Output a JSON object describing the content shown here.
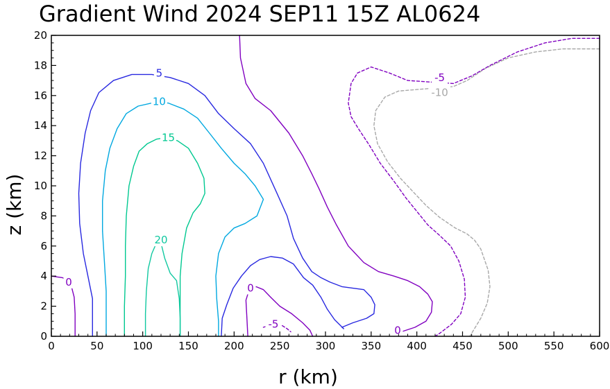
{
  "chart_data": {
    "type": "contour",
    "title": "Gradient Wind 2024 SEP11 15Z  AL0624",
    "xlabel": "r (km)",
    "ylabel": "z (km)",
    "xlim": [
      0,
      600
    ],
    "ylim": [
      0,
      20
    ],
    "xticks": [
      "0",
      "50",
      "100",
      "150",
      "200",
      "250",
      "300",
      "350",
      "400",
      "450",
      "500",
      "550",
      "600"
    ],
    "yticks": [
      "0",
      "2",
      "4",
      "6",
      "8",
      "10",
      "12",
      "14",
      "16",
      "18",
      "20"
    ],
    "grid": false,
    "contours": [
      {
        "level": -10,
        "label": "-10",
        "color": "#a8a8a8",
        "dashed": true,
        "points": [
          [
            600,
            19.1
          ],
          [
            560,
            19.1
          ],
          [
            530,
            18.9
          ],
          [
            500,
            18.5
          ],
          [
            475,
            17.8
          ],
          [
            455,
            17.0
          ],
          [
            440,
            16.6
          ],
          [
            420,
            16.5
          ],
          [
            400,
            16.4
          ],
          [
            380,
            16.3
          ],
          [
            365,
            15.9
          ],
          [
            355,
            15.0
          ],
          [
            353,
            14.0
          ],
          [
            357,
            12.8
          ],
          [
            368,
            11.6
          ],
          [
            382,
            10.5
          ],
          [
            396,
            9.6
          ],
          [
            410,
            8.7
          ],
          [
            425,
            7.9
          ],
          [
            442,
            7.2
          ],
          [
            455,
            6.8
          ],
          [
            463,
            6.4
          ],
          [
            470,
            5.8
          ],
          [
            478,
            4.4
          ],
          [
            480,
            3.3
          ],
          [
            477,
            2.2
          ],
          [
            470,
            1.2
          ],
          [
            462,
            0.4
          ],
          [
            458,
            0
          ]
        ],
        "label_at": [
          425,
          16.2
        ]
      },
      {
        "level": -5,
        "label": "-5",
        "color": "#8000c0",
        "dashed": true,
        "points": [
          [
            600,
            19.8
          ],
          [
            570,
            19.8
          ],
          [
            540,
            19.5
          ],
          [
            510,
            18.9
          ],
          [
            480,
            18.0
          ],
          [
            460,
            17.3
          ],
          [
            440,
            16.8
          ],
          [
            415,
            16.9
          ],
          [
            390,
            17.0
          ],
          [
            370,
            17.5
          ],
          [
            350,
            17.9
          ],
          [
            335,
            17.5
          ],
          [
            328,
            16.8
          ],
          [
            325,
            15.5
          ],
          [
            328,
            14.6
          ],
          [
            336,
            13.8
          ],
          [
            348,
            12.7
          ],
          [
            360,
            11.5
          ],
          [
            375,
            10.3
          ],
          [
            388,
            9.2
          ],
          [
            400,
            8.3
          ],
          [
            412,
            7.4
          ],
          [
            425,
            6.7
          ],
          [
            437,
            6.0
          ],
          [
            446,
            5.0
          ],
          [
            452,
            3.8
          ],
          [
            453,
            2.6
          ],
          [
            448,
            1.5
          ],
          [
            438,
            0.8
          ],
          [
            425,
            0.2
          ],
          [
            420,
            0
          ]
        ],
        "label_at": [
          425,
          17.2
        ]
      },
      {
        "level": -5,
        "label": "-5",
        "color": "#8000c0",
        "dashed": true,
        "points": [
          [
            232,
            0.6
          ],
          [
            243,
            0.8
          ],
          [
            253,
            0.7
          ],
          [
            258,
            0.5
          ],
          [
            262,
            0.3
          ]
        ],
        "label_at": [
          243,
          0.8
        ]
      },
      {
        "level": 0,
        "label": "0",
        "color": "#8000c0",
        "dashed": false,
        "points": [
          [
            0,
            4.0
          ],
          [
            12,
            3.9
          ],
          [
            19,
            3.7
          ],
          [
            22,
            3.3
          ],
          [
            25,
            2.6
          ],
          [
            26,
            1.5
          ],
          [
            26,
            0
          ]
        ],
        "label_at": [
          19,
          3.6
        ]
      },
      {
        "level": 0,
        "label": "0",
        "color": "#8000c0",
        "dashed": false,
        "points": [
          [
            206,
            20
          ],
          [
            207,
            18.5
          ],
          [
            213,
            16.8
          ],
          [
            223,
            15.8
          ],
          [
            240,
            15.0
          ],
          [
            260,
            13.5
          ],
          [
            275,
            12.0
          ],
          [
            285,
            10.8
          ],
          [
            293,
            9.8
          ],
          [
            302,
            8.6
          ],
          [
            312,
            7.4
          ],
          [
            325,
            6.0
          ],
          [
            342,
            4.9
          ],
          [
            358,
            4.3
          ],
          [
            375,
            4.0
          ],
          [
            390,
            3.7
          ],
          [
            403,
            3.3
          ],
          [
            412,
            2.8
          ],
          [
            417,
            2.3
          ],
          [
            416,
            1.6
          ],
          [
            410,
            1.0
          ],
          [
            398,
            0.6
          ],
          [
            383,
            0.3
          ],
          [
            375,
            0
          ]
        ],
        "label_at": [
          379,
          0.4
        ]
      },
      {
        "level": 0,
        "label": "0",
        "color": "#8000c0",
        "dashed": false,
        "points": [
          [
            215,
            0
          ],
          [
            214,
            1.2
          ],
          [
            213,
            2.4
          ],
          [
            216,
            3.0
          ],
          [
            224,
            3.3
          ],
          [
            232,
            3.1
          ],
          [
            240,
            2.6
          ],
          [
            250,
            2.0
          ],
          [
            263,
            1.5
          ],
          [
            275,
            0.9
          ],
          [
            283,
            0.4
          ],
          [
            286,
            0
          ]
        ],
        "label_at": [
          218,
          3.2
        ]
      },
      {
        "level": 5,
        "label": "5",
        "color": "#2828e0",
        "dashed": false,
        "points": [
          [
            45,
            0
          ],
          [
            45,
            1.5
          ],
          [
            45,
            2.5
          ],
          [
            40,
            4.0
          ],
          [
            35,
            5.5
          ],
          [
            31,
            7.5
          ],
          [
            30,
            9.5
          ],
          [
            32,
            11.5
          ],
          [
            37,
            13.5
          ],
          [
            43,
            15.0
          ],
          [
            52,
            16.2
          ],
          [
            68,
            17.0
          ],
          [
            88,
            17.4
          ],
          [
            110,
            17.4
          ],
          [
            130,
            17.2
          ],
          [
            150,
            16.8
          ],
          [
            168,
            16.0
          ],
          [
            183,
            14.8
          ],
          [
            200,
            13.8
          ],
          [
            218,
            12.8
          ],
          [
            232,
            11.5
          ],
          [
            247,
            9.5
          ],
          [
            258,
            8.0
          ],
          [
            265,
            6.5
          ],
          [
            275,
            5.2
          ],
          [
            285,
            4.3
          ],
          [
            295,
            3.9
          ],
          [
            305,
            3.6
          ],
          [
            318,
            3.3
          ],
          [
            330,
            3.2
          ],
          [
            342,
            3.1
          ],
          [
            350,
            2.6
          ],
          [
            354,
            2.1
          ],
          [
            353,
            1.5
          ],
          [
            345,
            1.2
          ],
          [
            330,
            0.9
          ],
          [
            318,
            0.6
          ],
          [
            320,
            0.5
          ],
          [
            310,
            1.1
          ],
          [
            302,
            1.8
          ],
          [
            295,
            2.6
          ],
          [
            286,
            3.4
          ],
          [
            276,
            3.9
          ],
          [
            265,
            4.8
          ],
          [
            253,
            5.2
          ],
          [
            240,
            5.3
          ],
          [
            228,
            5.1
          ],
          [
            218,
            4.7
          ],
          [
            208,
            4.0
          ],
          [
            199,
            3.2
          ],
          [
            192,
            2.1
          ],
          [
            187,
            1.2
          ],
          [
            186,
            0
          ]
        ],
        "label_at": [
          118,
          17.5
        ]
      },
      {
        "level": 10,
        "label": "10",
        "color": "#00a8e0",
        "dashed": false,
        "points": [
          [
            60,
            0
          ],
          [
            60,
            1.5
          ],
          [
            60,
            3.0
          ],
          [
            58,
            5.0
          ],
          [
            56,
            7.0
          ],
          [
            56,
            9.0
          ],
          [
            59,
            11.0
          ],
          [
            64,
            12.5
          ],
          [
            72,
            13.8
          ],
          [
            82,
            14.8
          ],
          [
            95,
            15.3
          ],
          [
            110,
            15.5
          ],
          [
            128,
            15.5
          ],
          [
            145,
            15.1
          ],
          [
            160,
            14.5
          ],
          [
            173,
            13.5
          ],
          [
            186,
            12.5
          ],
          [
            200,
            11.5
          ],
          [
            212,
            10.8
          ],
          [
            223,
            10.0
          ],
          [
            232,
            9.1
          ],
          [
            225,
            8.0
          ],
          [
            212,
            7.5
          ],
          [
            200,
            7.2
          ],
          [
            190,
            6.6
          ],
          [
            183,
            5.5
          ],
          [
            180,
            4.0
          ],
          [
            181,
            2.5
          ],
          [
            183,
            1.0
          ],
          [
            183,
            0
          ]
        ],
        "label_at": [
          118,
          15.6
        ]
      },
      {
        "level": 15,
        "label": "15",
        "color": "#00c890",
        "dashed": false,
        "points": [
          [
            80,
            0
          ],
          [
            80,
            2.0
          ],
          [
            81,
            4.0
          ],
          [
            81,
            6.0
          ],
          [
            82,
            8.0
          ],
          [
            85,
            10.0
          ],
          [
            90,
            11.3
          ],
          [
            96,
            12.3
          ],
          [
            105,
            12.8
          ],
          [
            115,
            13.1
          ],
          [
            125,
            13.2
          ],
          [
            138,
            13.0
          ],
          [
            150,
            12.5
          ],
          [
            160,
            11.5
          ],
          [
            167,
            10.5
          ],
          [
            168,
            9.5
          ],
          [
            163,
            8.8
          ],
          [
            155,
            8.2
          ],
          [
            148,
            7.2
          ],
          [
            143,
            5.5
          ],
          [
            141,
            4.0
          ],
          [
            141,
            2.0
          ],
          [
            141,
            0
          ]
        ],
        "label_at": [
          128,
          13.2
        ]
      },
      {
        "level": 20,
        "label": "20",
        "color": "#10c8a0",
        "dashed": false,
        "points": [
          [
            103,
            0
          ],
          [
            103,
            1.5
          ],
          [
            104,
            3.0
          ],
          [
            106,
            4.5
          ],
          [
            110,
            5.5
          ],
          [
            115,
            6.2
          ],
          [
            120,
            6.2
          ],
          [
            124,
            5.2
          ],
          [
            130,
            4.2
          ],
          [
            137,
            3.7
          ],
          [
            140,
            2.5
          ],
          [
            141,
            1.2
          ],
          [
            141,
            0
          ]
        ],
        "label_at": [
          120,
          6.4
        ]
      }
    ]
  }
}
